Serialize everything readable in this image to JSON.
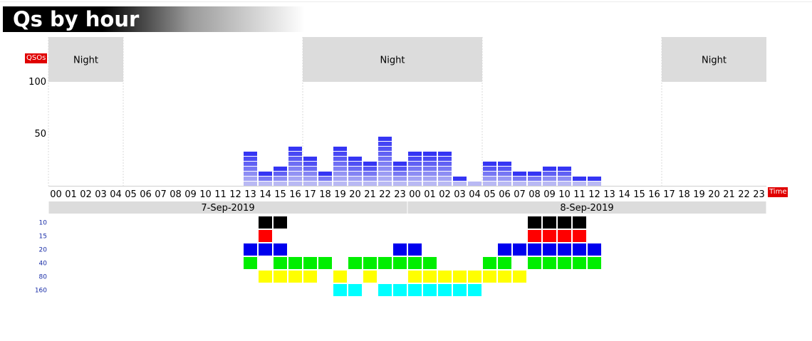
{
  "title": "Qs by hour",
  "chart_data": {
    "type": "bar",
    "ylabel": "QSOs",
    "xlabel": "Time",
    "ylim": [
      0,
      100
    ],
    "yticks": [
      100,
      50
    ],
    "hours": [
      "00",
      "01",
      "02",
      "03",
      "04",
      "05",
      "06",
      "07",
      "08",
      "09",
      "10",
      "11",
      "12",
      "13",
      "14",
      "15",
      "16",
      "17",
      "18",
      "19",
      "20",
      "21",
      "22",
      "23",
      "00",
      "01",
      "02",
      "03",
      "04",
      "05",
      "06",
      "07",
      "08",
      "09",
      "10",
      "11",
      "12",
      "13",
      "14",
      "15",
      "16",
      "17",
      "18",
      "19",
      "20",
      "21",
      "22",
      "23"
    ],
    "values": [
      0,
      0,
      0,
      0,
      0,
      0,
      0,
      0,
      0,
      0,
      0,
      0,
      0,
      35,
      15,
      20,
      40,
      30,
      15,
      40,
      30,
      25,
      50,
      25,
      35,
      35,
      35,
      10,
      5,
      25,
      25,
      15,
      15,
      20,
      20,
      10,
      10,
      0,
      0,
      0,
      0,
      0,
      0,
      0,
      0,
      0,
      0,
      0
    ],
    "days": [
      {
        "label": "7-Sep-2019",
        "start": 0,
        "end": 24
      },
      {
        "label": "8-Sep-2019",
        "start": 24,
        "end": 48
      }
    ],
    "night": [
      {
        "label": "Night",
        "start": 0,
        "end": 5
      },
      {
        "label": "Night",
        "start": 17,
        "end": 29
      },
      {
        "label": "Night",
        "start": 41,
        "end": 48
      }
    ],
    "bands": [
      {
        "name": "10",
        "color": "#000000",
        "hours": [
          14,
          15,
          32,
          33,
          34,
          35
        ]
      },
      {
        "name": "15",
        "color": "#ff0000",
        "hours": [
          14,
          32,
          33,
          34,
          35
        ]
      },
      {
        "name": "20",
        "color": "#0000ee",
        "hours": [
          13,
          14,
          15,
          23,
          24,
          30,
          31,
          32,
          33,
          34,
          35,
          36
        ]
      },
      {
        "name": "40",
        "color": "#00ee00",
        "hours": [
          13,
          15,
          16,
          17,
          18,
          20,
          21,
          22,
          23,
          24,
          25,
          29,
          30,
          32,
          33,
          34,
          35,
          36
        ]
      },
      {
        "name": "80",
        "color": "#ffff00",
        "hours": [
          14,
          15,
          16,
          17,
          19,
          21,
          24,
          25,
          26,
          27,
          28,
          29,
          30,
          31
        ]
      },
      {
        "name": "160",
        "color": "#00ffff",
        "hours": [
          19,
          20,
          22,
          23,
          24,
          25,
          26,
          27,
          28
        ]
      }
    ]
  }
}
